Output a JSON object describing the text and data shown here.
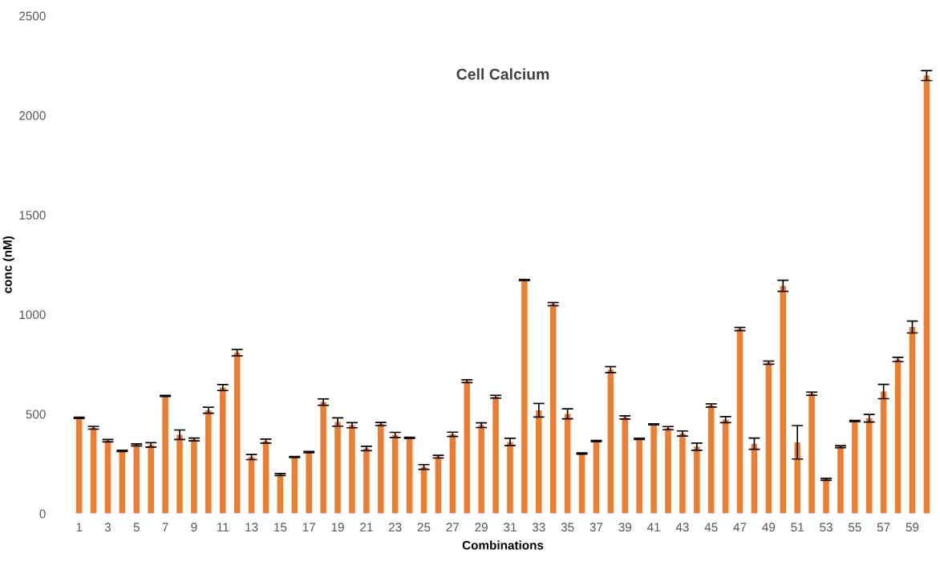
{
  "chart_data": {
    "type": "bar",
    "title": "Cell Calcium",
    "xlabel": "Combinations",
    "ylabel": "conc (nM)",
    "categories": [
      "1",
      null,
      "3",
      null,
      "5",
      null,
      "7",
      null,
      "9",
      null,
      "11",
      null,
      "13",
      null,
      "15",
      null,
      "17",
      null,
      "19",
      null,
      "21",
      null,
      "23",
      null,
      "25",
      null,
      "27",
      null,
      "29",
      null,
      "31",
      null,
      "33",
      null,
      "35",
      null,
      "37",
      null,
      "39",
      null,
      "41",
      null,
      "43",
      null,
      "45",
      null,
      "47",
      null,
      "49",
      null,
      "51",
      null,
      "53",
      null,
      "55",
      null,
      "57",
      null,
      "59",
      null
    ],
    "values": [
      481,
      431,
      366,
      315,
      345,
      345,
      591,
      396,
      372,
      519,
      633,
      808,
      284,
      364,
      196,
      284,
      309,
      560,
      460,
      444,
      327,
      450,
      395,
      380,
      234,
      286,
      398,
      665,
      444,
      587,
      360,
      1173,
      519,
      1052,
      501,
      302,
      364,
      723,
      483,
      375,
      448,
      429,
      402,
      336,
      543,
      472,
      927,
      351,
      758,
      1144,
      358,
      602,
      172,
      336,
      465,
      479,
      613,
      774,
      937,
      2200
    ],
    "errors": [
      3,
      7,
      6,
      3,
      5,
      11,
      3,
      24,
      7,
      15,
      15,
      16,
      13,
      10,
      5,
      3,
      3,
      16,
      21,
      13,
      11,
      8,
      13,
      3,
      12,
      7,
      11,
      7,
      12,
      7,
      18,
      3,
      34,
      8,
      25,
      3,
      3,
      15,
      8,
      3,
      3,
      8,
      13,
      18,
      8,
      15,
      8,
      28,
      8,
      28,
      84,
      8,
      5,
      5,
      3,
      19,
      36,
      11,
      30,
      25
    ],
    "color": "#ed7d31",
    "ylim": [
      0,
      2500
    ],
    "yticks": [
      0,
      500,
      1000,
      1500,
      2000,
      2500
    ],
    "grid": false
  }
}
